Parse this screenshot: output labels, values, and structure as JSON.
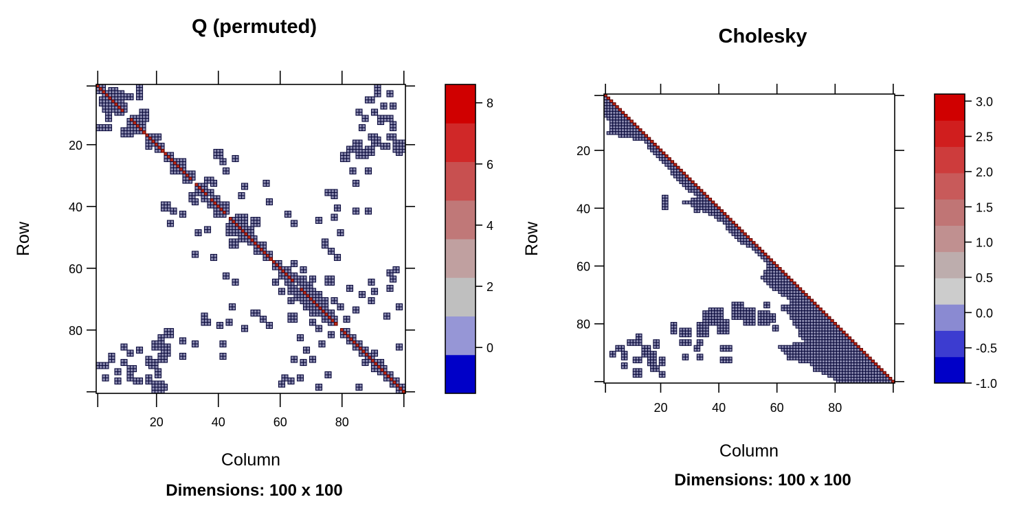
{
  "chart_data": [
    {
      "type": "heatmap",
      "title": "Q (permuted)",
      "xlabel": "Column",
      "ylabel": "Row",
      "sublabel": "Dimensions: 100 x 100",
      "dimensions": [
        100,
        100
      ],
      "xlim": [
        0.5,
        100.5
      ],
      "ylim": [
        100.5,
        0.5
      ],
      "x_ticks": [
        20,
        40,
        60,
        80
      ],
      "y_ticks": [
        20,
        40,
        60,
        80
      ],
      "diagonal_value": 8,
      "colorbar": {
        "range": [
          -1.5,
          8.6
        ],
        "ticks": [
          0,
          2,
          4,
          6,
          8
        ],
        "colors": [
          "#0000c8",
          "#9696d6",
          "#bfbfbf",
          "#c0a0a0",
          "#c07878",
          "#c85050",
          "#d02828",
          "#d00000"
        ]
      },
      "blocks": [
        [
          1,
          1,
          3,
          3
        ],
        [
          4,
          3,
          6,
          4
        ],
        [
          2,
          5,
          5,
          3
        ],
        [
          6,
          4,
          3,
          5
        ],
        [
          7,
          7,
          4,
          3
        ],
        [
          9,
          4,
          4,
          2
        ],
        [
          11,
          12,
          3,
          4
        ],
        [
          13,
          14,
          3,
          3
        ],
        [
          14,
          1,
          2,
          3
        ],
        [
          14,
          15,
          3,
          2
        ],
        [
          3,
          14,
          3,
          2
        ],
        [
          9,
          15,
          4,
          3
        ],
        [
          17,
          17,
          4,
          4
        ],
        [
          19,
          17,
          3,
          2
        ],
        [
          21,
          20,
          2,
          3
        ],
        [
          23,
          23,
          3,
          3
        ],
        [
          26,
          25,
          4,
          4
        ],
        [
          27,
          28,
          3,
          2
        ],
        [
          29,
          30,
          3,
          3
        ],
        [
          33,
          33,
          4,
          4
        ],
        [
          36,
          35,
          3,
          2
        ],
        [
          38,
          37,
          3,
          3
        ],
        [
          40,
          39,
          4,
          3
        ],
        [
          41,
          41,
          3,
          2
        ],
        [
          44,
          44,
          4,
          4
        ],
        [
          46,
          43,
          4,
          4
        ],
        [
          48,
          47,
          4,
          3
        ],
        [
          44,
          51,
          3,
          3
        ],
        [
          50,
          50,
          3,
          3
        ],
        [
          52,
          52,
          4,
          4
        ],
        [
          55,
          55,
          3,
          3
        ],
        [
          58,
          58,
          3,
          3
        ],
        [
          60,
          60,
          4,
          3
        ],
        [
          62,
          62,
          3,
          4
        ],
        [
          63,
          66,
          3,
          3
        ],
        [
          65,
          67,
          4,
          4
        ],
        [
          68,
          67,
          4,
          3
        ],
        [
          70,
          70,
          3,
          4
        ],
        [
          72,
          72,
          4,
          3
        ],
        [
          74,
          74,
          4,
          3
        ],
        [
          76,
          76,
          3,
          3
        ],
        [
          80,
          80,
          3,
          3
        ],
        [
          82,
          82,
          3,
          3
        ],
        [
          84,
          84,
          3,
          3
        ],
        [
          86,
          86,
          3,
          3
        ],
        [
          88,
          88,
          3,
          3
        ],
        [
          90,
          90,
          4,
          3
        ],
        [
          92,
          92,
          3,
          3
        ],
        [
          94,
          94,
          3,
          3
        ],
        [
          96,
          96,
          3,
          3
        ],
        [
          98,
          98,
          3,
          3
        ],
        [
          22,
          85,
          3,
          4
        ],
        [
          23,
          80,
          2,
          3
        ],
        [
          21,
          88,
          3,
          3
        ],
        [
          11,
          92,
          3,
          2
        ],
        [
          14,
          96,
          2,
          2
        ],
        [
          17,
          89,
          2,
          3
        ],
        [
          28,
          83,
          2,
          2
        ],
        [
          19,
          99,
          3,
          2
        ],
        [
          7,
          93,
          2,
          2
        ],
        [
          3,
          91,
          2,
          2
        ],
        [
          5,
          88,
          2,
          2
        ],
        [
          35,
          77,
          3,
          2
        ],
        [
          40,
          78,
          2,
          2
        ],
        [
          44,
          72,
          2,
          2
        ],
        [
          51,
          74,
          3,
          2
        ],
        [
          41,
          84,
          2,
          2
        ],
        [
          56,
          78,
          2,
          2
        ],
        [
          63,
          96,
          2,
          2
        ],
        [
          70,
          89,
          2,
          2
        ],
        [
          73,
          84,
          2,
          2
        ],
        [
          75,
          94,
          2,
          2
        ],
        [
          72,
          98,
          2,
          2
        ],
        [
          80,
          23,
          3,
          3
        ],
        [
          82,
          21,
          3,
          2
        ],
        [
          84,
          19,
          3,
          3
        ],
        [
          86,
          22,
          3,
          2
        ],
        [
          90,
          18,
          3,
          3
        ],
        [
          93,
          20,
          3,
          2
        ],
        [
          95,
          17,
          3,
          2
        ],
        [
          97,
          19,
          4,
          4
        ],
        [
          98,
          22,
          2,
          2
        ],
        [
          89,
          5,
          2,
          2
        ],
        [
          90,
          9,
          2,
          2
        ],
        [
          87,
          11,
          2,
          2
        ],
        [
          94,
          11,
          3,
          2
        ],
        [
          96,
          13,
          2,
          2
        ],
        [
          95,
          3,
          2,
          2
        ],
        [
          91,
          1,
          2,
          2
        ],
        [
          85,
          9,
          2,
          2
        ],
        [
          86,
          14,
          2,
          2
        ],
        [
          96,
          7,
          2,
          2
        ],
        [
          83,
          28,
          2,
          2
        ],
        [
          84,
          32,
          2,
          2
        ],
        [
          88,
          28,
          2,
          2
        ],
        [
          84,
          41,
          2,
          2
        ],
        [
          88,
          41,
          2,
          2
        ],
        [
          75,
          35,
          3,
          2
        ],
        [
          77,
          43,
          2,
          2
        ],
        [
          79,
          48,
          2,
          2
        ],
        [
          76,
          54,
          2,
          2
        ],
        [
          74,
          52,
          2,
          2
        ],
        [
          95,
          61,
          2,
          2
        ],
        [
          97,
          60,
          2,
          2
        ],
        [
          89,
          64,
          2,
          2
        ],
        [
          89,
          70,
          2,
          2
        ],
        [
          81,
          76,
          2,
          2
        ],
        [
          84,
          73,
          2,
          2
        ],
        [
          87,
          90,
          2,
          2
        ],
        [
          85,
          98,
          2,
          2
        ],
        [
          93,
          93,
          2,
          2
        ],
        [
          39,
          22,
          3,
          3
        ],
        [
          41,
          25,
          2,
          2
        ],
        [
          36,
          31,
          3,
          2
        ],
        [
          32,
          38,
          2,
          2
        ],
        [
          28,
          42,
          2,
          2
        ],
        [
          33,
          48,
          2,
          2
        ],
        [
          32,
          55,
          2,
          2
        ],
        [
          36,
          47,
          2,
          2
        ],
        [
          24,
          45,
          2,
          2
        ],
        [
          38,
          56,
          2,
          2
        ],
        [
          42,
          62,
          2,
          2
        ],
        [
          45,
          64,
          2,
          2
        ],
        [
          56,
          56,
          2,
          2
        ],
        [
          58,
          64,
          2,
          2
        ],
        [
          60,
          67,
          2,
          2
        ],
        [
          63,
          70,
          2,
          2
        ],
        [
          75,
          63,
          3,
          3
        ],
        [
          72,
          68,
          2,
          2
        ],
        [
          77,
          70,
          2,
          2
        ],
        [
          79,
          72,
          2,
          2
        ],
        [
          66,
          82,
          2,
          2
        ],
        [
          67,
          90,
          2,
          2
        ],
        [
          66,
          95,
          2,
          2
        ],
        [
          68,
          86,
          2,
          2
        ],
        [
          70,
          74,
          3,
          2
        ]
      ]
    },
    {
      "type": "heatmap",
      "title": "Cholesky",
      "xlabel": "Column",
      "ylabel": "Row",
      "sublabel": "Dimensions: 100 x 100",
      "dimensions": [
        100,
        100
      ],
      "xlim": [
        0.5,
        100.5
      ],
      "ylim": [
        100.5,
        0.5
      ],
      "x_ticks": [
        20,
        40,
        60,
        80
      ],
      "y_ticks": [
        20,
        40,
        60,
        80
      ],
      "diagonal_value": 3,
      "colorbar": {
        "range": [
          -1.0,
          3.1
        ],
        "ticks": [
          -1.0,
          -0.5,
          0.0,
          0.5,
          1.0,
          1.5,
          2.0,
          2.5,
          3.0
        ],
        "tick_labels": [
          "-1.0",
          "-0.5",
          "0.0",
          "0.5",
          "1.0",
          "1.5",
          "2.0",
          "2.5",
          "3.0"
        ],
        "colors": [
          "#0000c8",
          "#3c3cd0",
          "#8a8ad2",
          "#cccccc",
          "#bdadad",
          "#c09090",
          "#c07575",
          "#c85a5a",
          "#cd3c3c",
          "#d01e1e",
          "#d00000"
        ]
      },
      "lower_bands": [
        [
          1,
          1
        ],
        [
          4,
          1
        ],
        [
          8,
          1
        ],
        [
          10,
          3
        ],
        [
          12,
          3
        ],
        [
          14,
          2
        ],
        [
          17,
          15
        ],
        [
          20,
          17
        ],
        [
          23,
          20
        ],
        [
          26,
          23
        ],
        [
          28,
          24
        ],
        [
          30,
          26
        ],
        [
          33,
          29
        ],
        [
          36,
          33
        ],
        [
          38,
          28
        ],
        [
          40,
          33
        ],
        [
          42,
          37
        ],
        [
          45,
          42
        ],
        [
          48,
          44
        ],
        [
          50,
          46
        ],
        [
          52,
          48
        ],
        [
          54,
          52
        ],
        [
          56,
          54
        ],
        [
          58,
          56
        ],
        [
          60,
          57
        ],
        [
          62,
          56
        ],
        [
          64,
          55
        ],
        [
          66,
          57
        ],
        [
          68,
          59
        ],
        [
          70,
          62
        ],
        [
          72,
          65
        ],
        [
          74,
          64
        ],
        [
          76,
          64
        ],
        [
          78,
          65
        ],
        [
          80,
          66
        ],
        [
          82,
          68
        ],
        [
          84,
          68
        ],
        [
          86,
          70
        ],
        [
          88,
          61
        ],
        [
          90,
          63
        ],
        [
          92,
          64
        ],
        [
          94,
          72
        ],
        [
          96,
          73
        ],
        [
          98,
          78
        ],
        [
          100,
          81
        ]
      ],
      "fill_blocks": [
        [
          36,
          21,
          3,
          2
        ],
        [
          38,
          21,
          3,
          2
        ],
        [
          35,
          33,
          2,
          4
        ],
        [
          38,
          33,
          2,
          2
        ],
        [
          40,
          32,
          2,
          2
        ],
        [
          36,
          45,
          2,
          2
        ],
        [
          40,
          36,
          2,
          2
        ],
        [
          73,
          45,
          6,
          4
        ],
        [
          75,
          49,
          6,
          4
        ],
        [
          76,
          54,
          5,
          4
        ],
        [
          77,
          58,
          3,
          2
        ],
        [
          74,
          62,
          2,
          2
        ],
        [
          73,
          56,
          2,
          2
        ],
        [
          81,
          59,
          2,
          2
        ],
        [
          75,
          37,
          6,
          5
        ],
        [
          80,
          33,
          5,
          4
        ],
        [
          76,
          35,
          4,
          6
        ],
        [
          79,
          40,
          5,
          4
        ],
        [
          82,
          27,
          3,
          4
        ],
        [
          82,
          24,
          2,
          2
        ],
        [
          80,
          24,
          3,
          2
        ],
        [
          86,
          9,
          2,
          3
        ],
        [
          84,
          12,
          4,
          2
        ],
        [
          86,
          18,
          3,
          2
        ],
        [
          88,
          14,
          4,
          3
        ],
        [
          90,
          16,
          5,
          3
        ],
        [
          92,
          20,
          3,
          2
        ],
        [
          95,
          17,
          2,
          3
        ],
        [
          97,
          20,
          2,
          2
        ],
        [
          88,
          5,
          2,
          3
        ],
        [
          90,
          7,
          3,
          2
        ],
        [
          94,
          7,
          2,
          2
        ],
        [
          90,
          3,
          2,
          2
        ],
        [
          92,
          11,
          2,
          3
        ],
        [
          96,
          11,
          3,
          3
        ],
        [
          86,
          27,
          2,
          4
        ],
        [
          86,
          33,
          2,
          2
        ],
        [
          91,
          28,
          2,
          2
        ],
        [
          91,
          33,
          2,
          2
        ],
        [
          88,
          41,
          2,
          4
        ],
        [
          92,
          41,
          2,
          4
        ],
        [
          88,
          32,
          2,
          2
        ]
      ]
    }
  ]
}
